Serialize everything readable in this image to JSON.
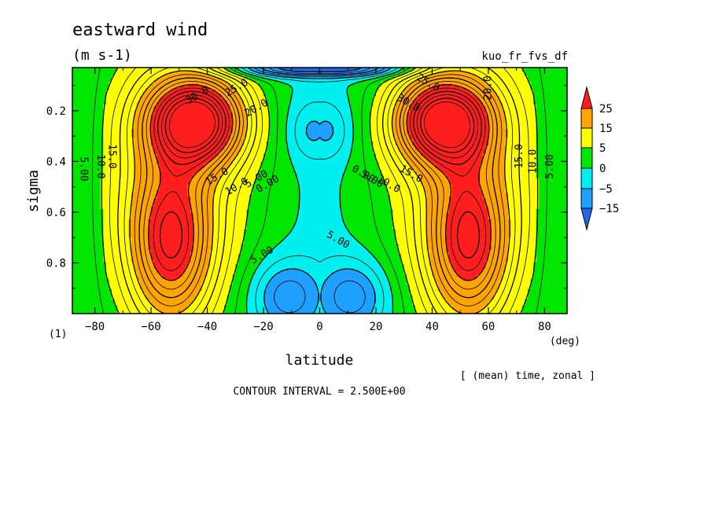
{
  "chart_data": {
    "type": "contour",
    "title": "eastward wind",
    "units": "(m s-1)",
    "experiment": "kuo_fr_fvs_df",
    "xlabel": "latitude",
    "xunits": "(deg)",
    "ylabel": "sigma",
    "panel_index": "(1)",
    "average_note": "[ (mean) time, zonal ]",
    "contour_interval": "CONTOUR INTERVAL = 2.500E+00",
    "xlim": [
      -88,
      88
    ],
    "ylim": [
      1.0,
      0.03
    ],
    "x_ticks": [
      -80,
      -60,
      -40,
      -20,
      0,
      20,
      40,
      60,
      80
    ],
    "y_ticks": [
      0.2,
      0.4,
      0.6,
      0.8
    ],
    "colorbar": {
      "labels": [
        "25",
        "15",
        "5",
        "0",
        "-5",
        "-15"
      ],
      "levels": [
        -15,
        -5,
        0,
        5,
        15,
        25
      ],
      "colors": [
        "#1f66e8",
        "#1ea0ff",
        "#00f0f0",
        "#00e600",
        "#ffff00",
        "#ffa500",
        "#ff1e1e"
      ]
    },
    "contour_labels": [
      {
        "text": "30.0",
        "lat": -43,
        "sigma": 0.15
      },
      {
        "text": "25.0",
        "lat": -29,
        "sigma": 0.12
      },
      {
        "text": "20.0",
        "lat": -22,
        "sigma": 0.2
      },
      {
        "text": "15.0",
        "lat": -75,
        "sigma": 0.38
      },
      {
        "text": "10.0",
        "lat": -79,
        "sigma": 0.42
      },
      {
        "text": "5.00",
        "lat": -85,
        "sigma": 0.43
      },
      {
        "text": "15.0",
        "lat": -36,
        "sigma": 0.47
      },
      {
        "text": "10.0",
        "lat": -29,
        "sigma": 0.51
      },
      {
        "text": "5.00",
        "lat": -22,
        "sigma": 0.48
      },
      {
        "text": "0.00",
        "lat": -18,
        "sigma": 0.5
      },
      {
        "text": "5.00",
        "lat": -20,
        "sigma": 0.78
      },
      {
        "text": "5.00",
        "lat": 6,
        "sigma": 0.72
      },
      {
        "text": "25.0",
        "lat": 38,
        "sigma": 0.1
      },
      {
        "text": "20.0",
        "lat": 61,
        "sigma": 0.11
      },
      {
        "text": "30.0",
        "lat": 31,
        "sigma": 0.18
      },
      {
        "text": "15.0",
        "lat": 72,
        "sigma": 0.38
      },
      {
        "text": "10.0",
        "lat": 77,
        "sigma": 0.4
      },
      {
        "text": "5.00",
        "lat": 83,
        "sigma": 0.42
      },
      {
        "text": "15.0",
        "lat": 32,
        "sigma": 0.46
      },
      {
        "text": "10.0",
        "lat": 24,
        "sigma": 0.5
      },
      {
        "text": "5.00",
        "lat": 18,
        "sigma": 0.48
      },
      {
        "text": "0.00",
        "lat": 15,
        "sigma": 0.46
      }
    ]
  }
}
